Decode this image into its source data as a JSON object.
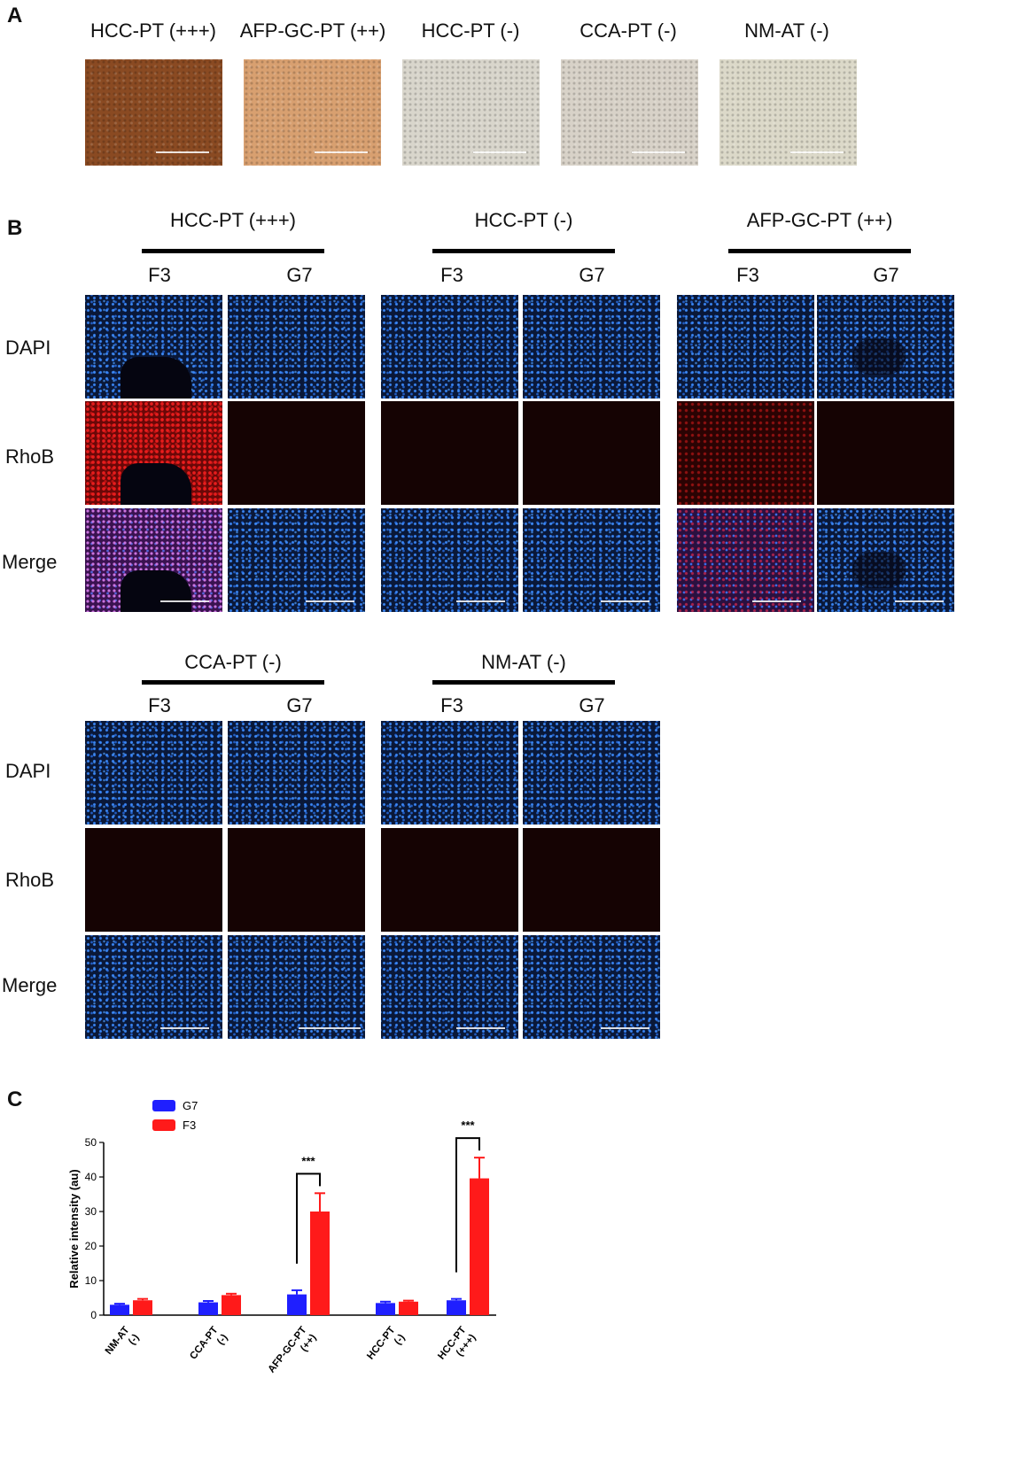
{
  "panel_labels": {
    "a": "A",
    "b": "B",
    "c": "C"
  },
  "panel_a": {
    "items": [
      {
        "title": "HCC-PT (+++)",
        "fill": "#8a4a22"
      },
      {
        "title": "AFP-GC-PT (++)",
        "fill": "#d8a070"
      },
      {
        "title": "HCC-PT (-)",
        "fill": "#d9d6cc"
      },
      {
        "title": "CCA-PT (-)",
        "fill": "#d8d2c8"
      },
      {
        "title": "NM-AT (-)",
        "fill": "#dcd9c9"
      }
    ]
  },
  "panel_b": {
    "row_labels": [
      "DAPI",
      "RhoB",
      "Merge"
    ],
    "col_labels": [
      "F3",
      "G7"
    ],
    "groups": [
      {
        "title": "HCC-PT (+++)"
      },
      {
        "title": "HCC-PT (-)"
      },
      {
        "title": "AFP-GC-PT (++)"
      },
      {
        "title": "CCA-PT (-)"
      },
      {
        "title": "NM-AT (-)"
      }
    ],
    "colors": {
      "dapi": "#2a6fe0",
      "rhob": "#e01818",
      "merge": "#b060d0"
    }
  },
  "chart_data": {
    "type": "bar",
    "ylabel": "Relative intensity (au)",
    "ylim": [
      0,
      50
    ],
    "yticks": [
      0,
      10,
      20,
      30,
      40,
      50
    ],
    "categories": [
      "NM-AT\n(-)",
      "CCA-PT\n(-)",
      "AFP-GC-PT\n(++)",
      "HCC-PT\n(-)",
      "HCC-PT\n(+++)"
    ],
    "series": [
      {
        "name": "G7",
        "color": "#1f1fff",
        "values": [
          3.0,
          3.7,
          6.0,
          3.5,
          4.3
        ],
        "errors": [
          0.3,
          0.4,
          1.2,
          0.4,
          0.4
        ]
      },
      {
        "name": "F3",
        "color": "#ff1a1a",
        "values": [
          4.3,
          5.8,
          30.0,
          3.9,
          39.6
        ],
        "errors": [
          0.4,
          0.4,
          5.3,
          0.3,
          6.0
        ]
      }
    ],
    "annotations": [
      {
        "category_index": 2,
        "text": "***"
      },
      {
        "category_index": 4,
        "text": "***"
      }
    ],
    "legend_position": "top-left"
  }
}
